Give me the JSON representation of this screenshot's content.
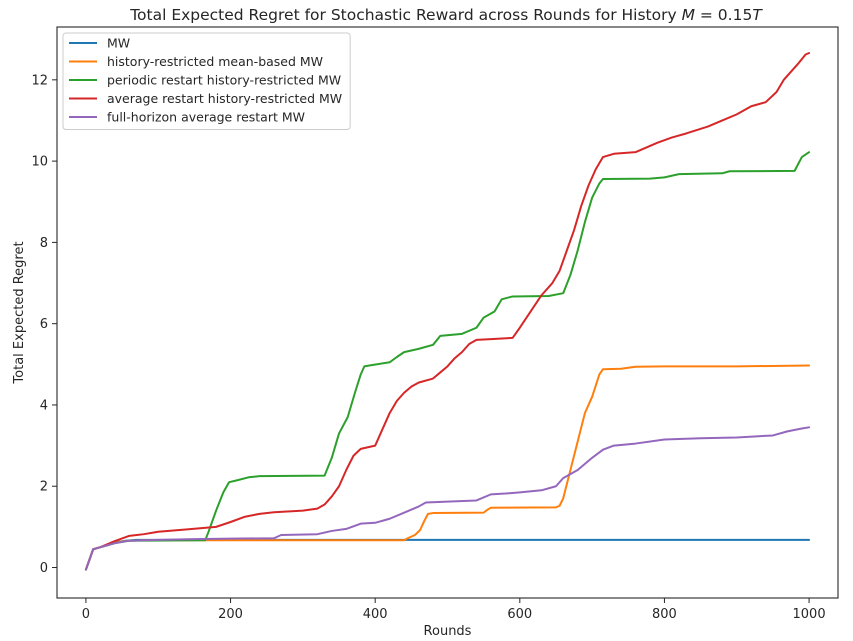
{
  "chart_data": {
    "type": "line",
    "title": "Total Expected Regret for Stochastic Reward across Rounds for History M = 0.15T",
    "title_parts": {
      "prefix": "Total Expected Regret for Stochastic Reward across Rounds for History ",
      "math_var": "M",
      "suffix": " = 0.15",
      "math_var2": "T"
    },
    "xlabel": "Rounds",
    "ylabel": "Total Expected Regret",
    "xlim": [
      -40,
      1040
    ],
    "ylim": [
      -0.75,
      13.3
    ],
    "xticks": [
      0,
      200,
      400,
      600,
      800,
      1000
    ],
    "xtick_labels": [
      "0",
      "200",
      "400",
      "600",
      "800",
      "1000"
    ],
    "yticks": [
      0,
      2,
      4,
      6,
      8,
      10,
      12
    ],
    "ytick_labels": [
      "0",
      "2",
      "4",
      "6",
      "8",
      "10",
      "12"
    ],
    "grid": false,
    "legend_position": "top-left",
    "series": [
      {
        "name": "MW",
        "color": "#1f77b4",
        "points": [
          [
            0,
            -0.05
          ],
          [
            10,
            0.45
          ],
          [
            20,
            0.5
          ],
          [
            30,
            0.55
          ],
          [
            40,
            0.62
          ],
          [
            55,
            0.66
          ],
          [
            70,
            0.68
          ],
          [
            100,
            0.68
          ],
          [
            200,
            0.68
          ],
          [
            400,
            0.68
          ],
          [
            600,
            0.68
          ],
          [
            800,
            0.68
          ],
          [
            1000,
            0.68
          ]
        ]
      },
      {
        "name": "history-restricted mean-based MW",
        "color": "#ff7f0e",
        "points": [
          [
            0,
            -0.05
          ],
          [
            10,
            0.45
          ],
          [
            20,
            0.5
          ],
          [
            30,
            0.55
          ],
          [
            45,
            0.63
          ],
          [
            60,
            0.66
          ],
          [
            80,
            0.67
          ],
          [
            440,
            0.67
          ],
          [
            445,
            0.72
          ],
          [
            455,
            0.8
          ],
          [
            462,
            0.92
          ],
          [
            468,
            1.15
          ],
          [
            473,
            1.32
          ],
          [
            480,
            1.34
          ],
          [
            550,
            1.35
          ],
          [
            555,
            1.42
          ],
          [
            560,
            1.47
          ],
          [
            650,
            1.48
          ],
          [
            655,
            1.52
          ],
          [
            660,
            1.7
          ],
          [
            670,
            2.4
          ],
          [
            680,
            3.1
          ],
          [
            690,
            3.8
          ],
          [
            700,
            4.2
          ],
          [
            710,
            4.75
          ],
          [
            715,
            4.88
          ],
          [
            740,
            4.89
          ],
          [
            760,
            4.94
          ],
          [
            800,
            4.95
          ],
          [
            900,
            4.95
          ],
          [
            1000,
            4.97
          ]
        ]
      },
      {
        "name": "periodic restart history-restricted MW",
        "color": "#2ca02c",
        "points": [
          [
            0,
            -0.05
          ],
          [
            10,
            0.45
          ],
          [
            20,
            0.5
          ],
          [
            40,
            0.6
          ],
          [
            60,
            0.66
          ],
          [
            165,
            0.67
          ],
          [
            170,
            0.9
          ],
          [
            180,
            1.4
          ],
          [
            190,
            1.85
          ],
          [
            198,
            2.1
          ],
          [
            210,
            2.15
          ],
          [
            225,
            2.22
          ],
          [
            240,
            2.25
          ],
          [
            330,
            2.26
          ],
          [
            340,
            2.7
          ],
          [
            350,
            3.3
          ],
          [
            362,
            3.7
          ],
          [
            372,
            4.3
          ],
          [
            380,
            4.75
          ],
          [
            385,
            4.95
          ],
          [
            395,
            4.98
          ],
          [
            420,
            5.05
          ],
          [
            430,
            5.18
          ],
          [
            440,
            5.3
          ],
          [
            460,
            5.38
          ],
          [
            480,
            5.48
          ],
          [
            490,
            5.7
          ],
          [
            520,
            5.75
          ],
          [
            540,
            5.9
          ],
          [
            550,
            6.15
          ],
          [
            565,
            6.3
          ],
          [
            575,
            6.6
          ],
          [
            590,
            6.67
          ],
          [
            640,
            6.68
          ],
          [
            660,
            6.75
          ],
          [
            670,
            7.2
          ],
          [
            680,
            7.8
          ],
          [
            690,
            8.5
          ],
          [
            700,
            9.1
          ],
          [
            710,
            9.45
          ],
          [
            715,
            9.56
          ],
          [
            780,
            9.57
          ],
          [
            800,
            9.6
          ],
          [
            820,
            9.68
          ],
          [
            880,
            9.7
          ],
          [
            890,
            9.75
          ],
          [
            980,
            9.76
          ],
          [
            990,
            10.1
          ],
          [
            1000,
            10.22
          ]
        ]
      },
      {
        "name": "average restart history-restricted MW",
        "color": "#d62728",
        "points": [
          [
            0,
            -0.05
          ],
          [
            10,
            0.45
          ],
          [
            20,
            0.5
          ],
          [
            40,
            0.65
          ],
          [
            60,
            0.78
          ],
          [
            80,
            0.82
          ],
          [
            100,
            0.88
          ],
          [
            140,
            0.94
          ],
          [
            160,
            0.97
          ],
          [
            180,
            1.0
          ],
          [
            200,
            1.12
          ],
          [
            220,
            1.25
          ],
          [
            240,
            1.32
          ],
          [
            260,
            1.36
          ],
          [
            300,
            1.4
          ],
          [
            320,
            1.45
          ],
          [
            330,
            1.55
          ],
          [
            340,
            1.75
          ],
          [
            350,
            2.0
          ],
          [
            360,
            2.4
          ],
          [
            370,
            2.75
          ],
          [
            380,
            2.92
          ],
          [
            400,
            3.0
          ],
          [
            410,
            3.4
          ],
          [
            420,
            3.8
          ],
          [
            430,
            4.1
          ],
          [
            440,
            4.3
          ],
          [
            450,
            4.45
          ],
          [
            460,
            4.55
          ],
          [
            480,
            4.65
          ],
          [
            490,
            4.8
          ],
          [
            500,
            4.95
          ],
          [
            510,
            5.15
          ],
          [
            520,
            5.3
          ],
          [
            530,
            5.5
          ],
          [
            540,
            5.6
          ],
          [
            560,
            5.62
          ],
          [
            590,
            5.65
          ],
          [
            600,
            5.9
          ],
          [
            615,
            6.3
          ],
          [
            630,
            6.7
          ],
          [
            645,
            7.0
          ],
          [
            655,
            7.3
          ],
          [
            665,
            7.8
          ],
          [
            675,
            8.3
          ],
          [
            685,
            8.9
          ],
          [
            695,
            9.4
          ],
          [
            705,
            9.8
          ],
          [
            715,
            10.1
          ],
          [
            730,
            10.18
          ],
          [
            760,
            10.22
          ],
          [
            790,
            10.45
          ],
          [
            810,
            10.58
          ],
          [
            830,
            10.68
          ],
          [
            860,
            10.85
          ],
          [
            880,
            11.0
          ],
          [
            900,
            11.15
          ],
          [
            920,
            11.35
          ],
          [
            940,
            11.45
          ],
          [
            955,
            11.7
          ],
          [
            965,
            12.0
          ],
          [
            975,
            12.2
          ],
          [
            985,
            12.4
          ],
          [
            995,
            12.62
          ],
          [
            1000,
            12.66
          ]
        ]
      },
      {
        "name": "full-horizon average restart MW",
        "color": "#9467bd",
        "points": [
          [
            0,
            -0.05
          ],
          [
            10,
            0.45
          ],
          [
            20,
            0.5
          ],
          [
            40,
            0.6
          ],
          [
            60,
            0.66
          ],
          [
            100,
            0.68
          ],
          [
            150,
            0.7
          ],
          [
            200,
            0.71
          ],
          [
            260,
            0.72
          ],
          [
            270,
            0.8
          ],
          [
            320,
            0.82
          ],
          [
            340,
            0.9
          ],
          [
            360,
            0.95
          ],
          [
            380,
            1.08
          ],
          [
            400,
            1.1
          ],
          [
            420,
            1.2
          ],
          [
            440,
            1.35
          ],
          [
            460,
            1.5
          ],
          [
            470,
            1.6
          ],
          [
            500,
            1.62
          ],
          [
            540,
            1.65
          ],
          [
            560,
            1.8
          ],
          [
            580,
            1.82
          ],
          [
            600,
            1.85
          ],
          [
            630,
            1.9
          ],
          [
            650,
            2.0
          ],
          [
            660,
            2.2
          ],
          [
            680,
            2.4
          ],
          [
            700,
            2.7
          ],
          [
            715,
            2.9
          ],
          [
            730,
            3.0
          ],
          [
            760,
            3.05
          ],
          [
            800,
            3.15
          ],
          [
            850,
            3.18
          ],
          [
            900,
            3.2
          ],
          [
            950,
            3.25
          ],
          [
            970,
            3.35
          ],
          [
            990,
            3.42
          ],
          [
            1000,
            3.45
          ]
        ]
      }
    ]
  }
}
